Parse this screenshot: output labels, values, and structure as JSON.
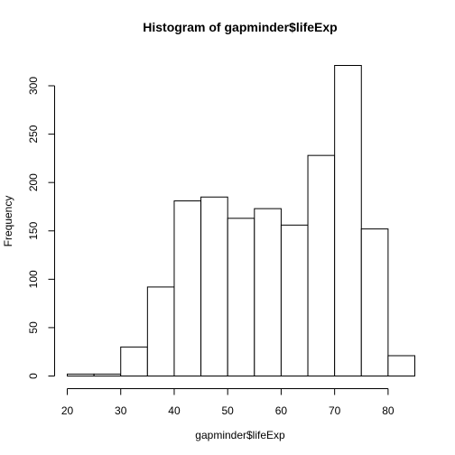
{
  "chart_data": {
    "type": "bar",
    "title": "Histogram of gapminder$lifeExp",
    "xlabel": "gapminder$lifeExp",
    "ylabel": "Frequency",
    "bins": [
      {
        "x0": 20,
        "x1": 25,
        "count": 2
      },
      {
        "x0": 25,
        "x1": 30,
        "count": 2
      },
      {
        "x0": 30,
        "x1": 35,
        "count": 30
      },
      {
        "x0": 35,
        "x1": 40,
        "count": 92
      },
      {
        "x0": 40,
        "x1": 45,
        "count": 181
      },
      {
        "x0": 45,
        "x1": 50,
        "count": 185
      },
      {
        "x0": 50,
        "x1": 55,
        "count": 163
      },
      {
        "x0": 55,
        "x1": 60,
        "count": 173
      },
      {
        "x0": 60,
        "x1": 65,
        "count": 156
      },
      {
        "x0": 65,
        "x1": 70,
        "count": 228
      },
      {
        "x0": 70,
        "x1": 75,
        "count": 321
      },
      {
        "x0": 75,
        "x1": 80,
        "count": 152
      },
      {
        "x0": 80,
        "x1": 85,
        "count": 21
      }
    ],
    "xlim": [
      20,
      85
    ],
    "ylim": [
      0,
      321
    ],
    "xticks": [
      20,
      30,
      40,
      50,
      60,
      70,
      80
    ],
    "yticks": [
      0,
      50,
      100,
      150,
      200,
      250,
      300
    ],
    "grid": false,
    "legend": "none"
  }
}
